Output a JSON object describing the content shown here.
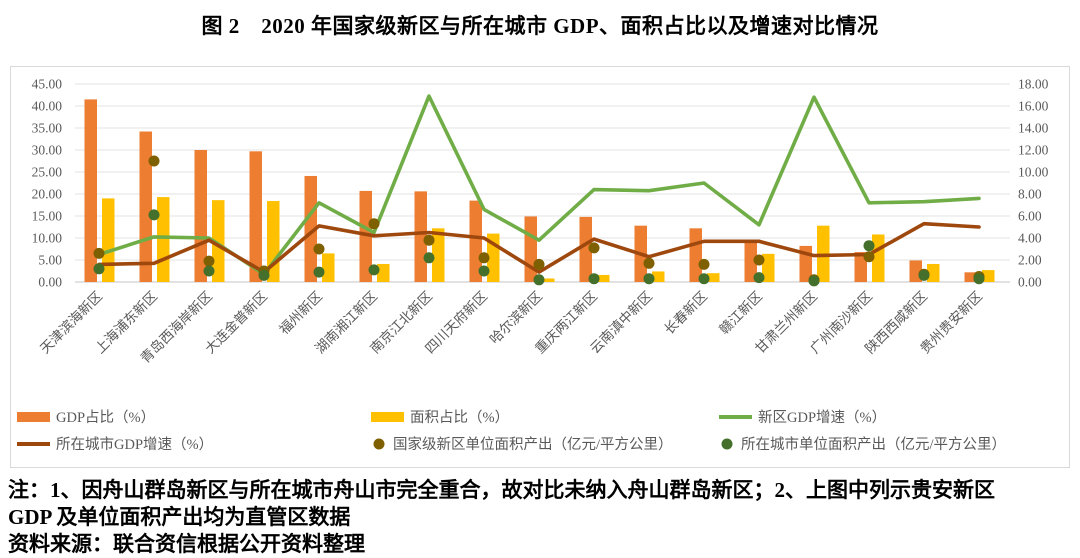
{
  "title": "图 2　2020 年国家级新区与所在城市 GDP、面积占比以及增速对比情况",
  "notes": {
    "note": "注：1、因舟山群岛新区与所在城市舟山市完全重合，故对比未纳入舟山群岛新区；2、上图中列示贵安新区 GDP 及单位面积产出均为直管区数据",
    "source": "资料来源：联合资信根据公开资料整理"
  },
  "chart_data": {
    "type": "combo (bar + line + scatter), dual axis",
    "categories": [
      "天津滨海新区",
      "上海浦东新区",
      "青岛西海岸新区",
      "大连金普新区",
      "福州新区",
      "湖南湘江新区",
      "南京江北新区",
      "四川天府新区",
      "哈尔滨新区",
      "重庆两江新区",
      "云南滇中新区",
      "长春新区",
      "赣江新区",
      "甘肃兰州新区",
      "广州南沙新区",
      "陕西西咸新区",
      "贵州贵安新区"
    ],
    "left_axis": {
      "min": 0,
      "max": 45,
      "step": 5,
      "ticks": [
        0,
        5,
        10,
        15,
        20,
        25,
        30,
        35,
        40,
        45
      ],
      "tick_format": "0.00"
    },
    "right_axis": {
      "min": 0,
      "max": 18,
      "step": 2,
      "ticks": [
        0,
        2,
        4,
        6,
        8,
        10,
        12,
        14,
        16,
        18
      ],
      "tick_format": "0.00"
    },
    "grid": true,
    "legend_position": "bottom",
    "colors": {
      "gdp_share": "#ED7D31",
      "area_share": "#FFC000",
      "newarea_growth": "#70AD47",
      "city_growth": "#9E480E",
      "newarea_output": "#7F6000",
      "city_output": "#45702B",
      "gridline": "#E3E3E3",
      "axis_text": "#595959",
      "frame_border": "#D9D9D9"
    },
    "series": [
      {
        "name": "GDP占比（%）",
        "type": "bar",
        "axis": "left",
        "color": "#ED7D31",
        "values": [
          41.5,
          34.2,
          30.0,
          29.7,
          24.1,
          20.7,
          20.6,
          18.5,
          14.9,
          14.8,
          12.8,
          12.2,
          9.5,
          8.2,
          6.8,
          4.9,
          2.2
        ]
      },
      {
        "name": "面积占比（%）",
        "type": "bar",
        "axis": "left",
        "color": "#FFC000",
        "values": [
          19.0,
          19.3,
          18.6,
          18.4,
          6.5,
          4.1,
          12.2,
          11.0,
          0.8,
          1.6,
          2.4,
          2.0,
          6.4,
          12.8,
          10.8,
          4.1,
          2.7
        ]
      },
      {
        "name": "新区GDP增速（%）",
        "type": "line",
        "axis": "right",
        "color": "#70AD47",
        "values": [
          2.5,
          4.1,
          4.0,
          0.7,
          7.2,
          4.5,
          16.9,
          6.6,
          3.8,
          8.4,
          8.3,
          9.0,
          5.2,
          16.8,
          7.2,
          7.3,
          7.6
        ]
      },
      {
        "name": "所在城市GDP增速（%）",
        "type": "line",
        "axis": "right",
        "color": "#9E480E",
        "values": [
          1.6,
          1.7,
          3.8,
          0.9,
          5.1,
          4.2,
          4.5,
          4.0,
          0.9,
          3.9,
          2.3,
          3.7,
          3.7,
          2.4,
          2.5,
          5.3,
          5.0
        ]
      },
      {
        "name": "国家级新区单位面积产出（亿元/平方公里）",
        "type": "scatter",
        "axis": "right",
        "color": "#7F6000",
        "values": [
          2.6,
          11.0,
          1.9,
          1.0,
          3.0,
          5.3,
          3.8,
          2.2,
          1.6,
          3.1,
          1.7,
          1.6,
          2.0,
          0.2,
          2.3,
          0.7,
          0.5
        ]
      },
      {
        "name": "所在城市单位面积产出（亿元/平方公里）",
        "type": "scatter",
        "axis": "right",
        "color": "#45702B",
        "values": [
          1.2,
          6.1,
          1.0,
          0.6,
          0.9,
          1.1,
          2.2,
          1.0,
          0.2,
          0.3,
          0.3,
          0.3,
          0.4,
          0.1,
          3.3,
          0.6,
          0.3
        ]
      }
    ]
  }
}
